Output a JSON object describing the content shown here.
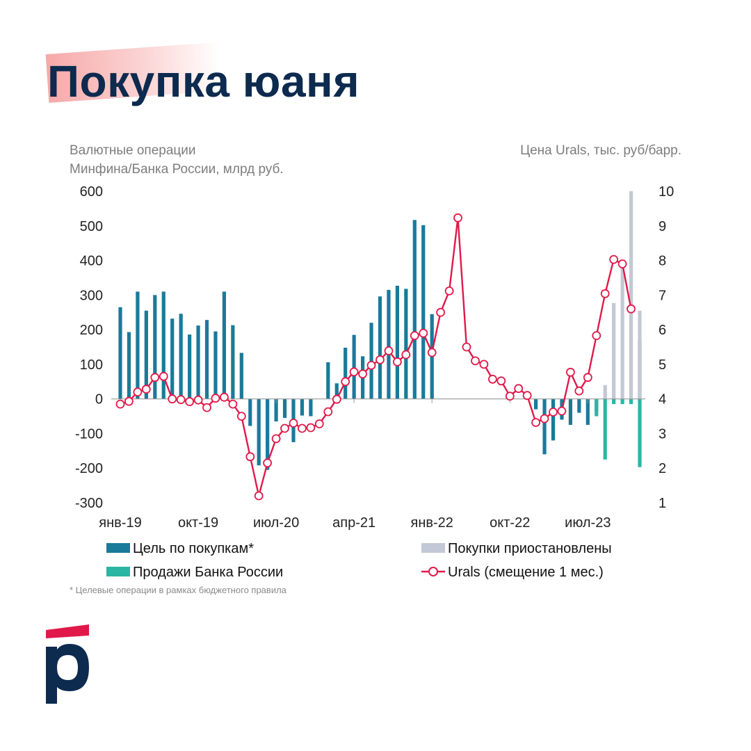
{
  "title": "Покупка юаня",
  "chart_data": {
    "type": "bar",
    "left_axis_title": [
      "Валютные операции",
      "Минфина/Банка  России, млрд руб."
    ],
    "right_axis_title": "Цена Urals, тыс. руб/барр.",
    "y_left": {
      "min": -300,
      "max": 600,
      "ticks": [
        600,
        500,
        400,
        300,
        200,
        100,
        0,
        -100,
        -200,
        -300
      ]
    },
    "y_right": {
      "min": 1,
      "max": 10,
      "ticks": [
        10,
        9,
        8,
        7,
        6,
        5,
        4,
        3,
        2,
        1
      ]
    },
    "x_tick_labels": [
      "янв-19",
      "окт-19",
      "июл-20",
      "апр-21",
      "янв-22",
      "окт-22",
      "июл-23"
    ],
    "x_tick_months": [
      0,
      9,
      18,
      27,
      36,
      45,
      54
    ],
    "months_count": 61,
    "series": [
      {
        "name": "Цель по покупкам*",
        "color": "#1a7a9a",
        "kind": "bar",
        "values": [
          265,
          193,
          310,
          255,
          300,
          310,
          232,
          246,
          186,
          212,
          228,
          195,
          310,
          213,
          133,
          -78,
          -192,
          -205,
          -65,
          -55,
          -125,
          -48,
          -50,
          0,
          106,
          45,
          148,
          185,
          123,
          220,
          296,
          315,
          327,
          318,
          517,
          502,
          245,
          null,
          null,
          null,
          null,
          null,
          null,
          null,
          null,
          null,
          null,
          null,
          -30,
          -160,
          -120,
          -60,
          -75,
          -40,
          -75,
          -35,
          0,
          0,
          0,
          0,
          168
        ]
      },
      {
        "name": "Покупки приостановлены",
        "color": "#c3c8d5",
        "kind": "bar",
        "values": [
          null,
          null,
          null,
          null,
          null,
          null,
          null,
          null,
          null,
          null,
          null,
          null,
          null,
          null,
          null,
          null,
          null,
          null,
          null,
          null,
          null,
          null,
          null,
          null,
          null,
          null,
          null,
          null,
          null,
          null,
          null,
          null,
          null,
          null,
          null,
          null,
          null,
          null,
          null,
          null,
          null,
          null,
          null,
          null,
          null,
          null,
          null,
          null,
          null,
          null,
          null,
          null,
          null,
          null,
          null,
          null,
          40,
          277,
          390,
          600,
          255
        ]
      },
      {
        "name": "Продажи Банка России",
        "color": "#2bb6a3",
        "kind": "bar",
        "values": [
          null,
          null,
          null,
          null,
          null,
          null,
          null,
          null,
          null,
          null,
          null,
          null,
          null,
          null,
          null,
          null,
          null,
          null,
          null,
          null,
          null,
          null,
          null,
          null,
          null,
          null,
          null,
          null,
          null,
          null,
          null,
          null,
          null,
          null,
          null,
          null,
          null,
          null,
          null,
          null,
          null,
          null,
          null,
          null,
          null,
          null,
          null,
          null,
          null,
          null,
          null,
          null,
          null,
          null,
          null,
          -50,
          -175,
          -15,
          -15,
          -15,
          -197
        ]
      },
      {
        "name": "Urals (смещение 1 мес.)",
        "color": "#e0194a",
        "kind": "line",
        "values": [
          3.85,
          3.93,
          4.2,
          4.28,
          4.62,
          4.65,
          4.0,
          3.98,
          3.92,
          3.97,
          3.75,
          4.02,
          4.05,
          3.85,
          3.5,
          2.33,
          1.2,
          2.15,
          2.85,
          3.15,
          3.3,
          3.15,
          3.17,
          3.28,
          3.63,
          3.99,
          4.5,
          4.78,
          4.72,
          4.97,
          5.13,
          5.39,
          5.07,
          5.28,
          5.83,
          5.9,
          5.34,
          6.5,
          7.12,
          9.23,
          5.5,
          5.1,
          5.0,
          4.57,
          4.52,
          4.08,
          4.3,
          4.1,
          3.32,
          3.43,
          3.62,
          3.65,
          4.77,
          4.23,
          4.62,
          5.83,
          7.04,
          8.03,
          7.9,
          6.6,
          null
        ]
      }
    ],
    "footnote": "* Целевые операции в рамках бюджетного правила"
  }
}
